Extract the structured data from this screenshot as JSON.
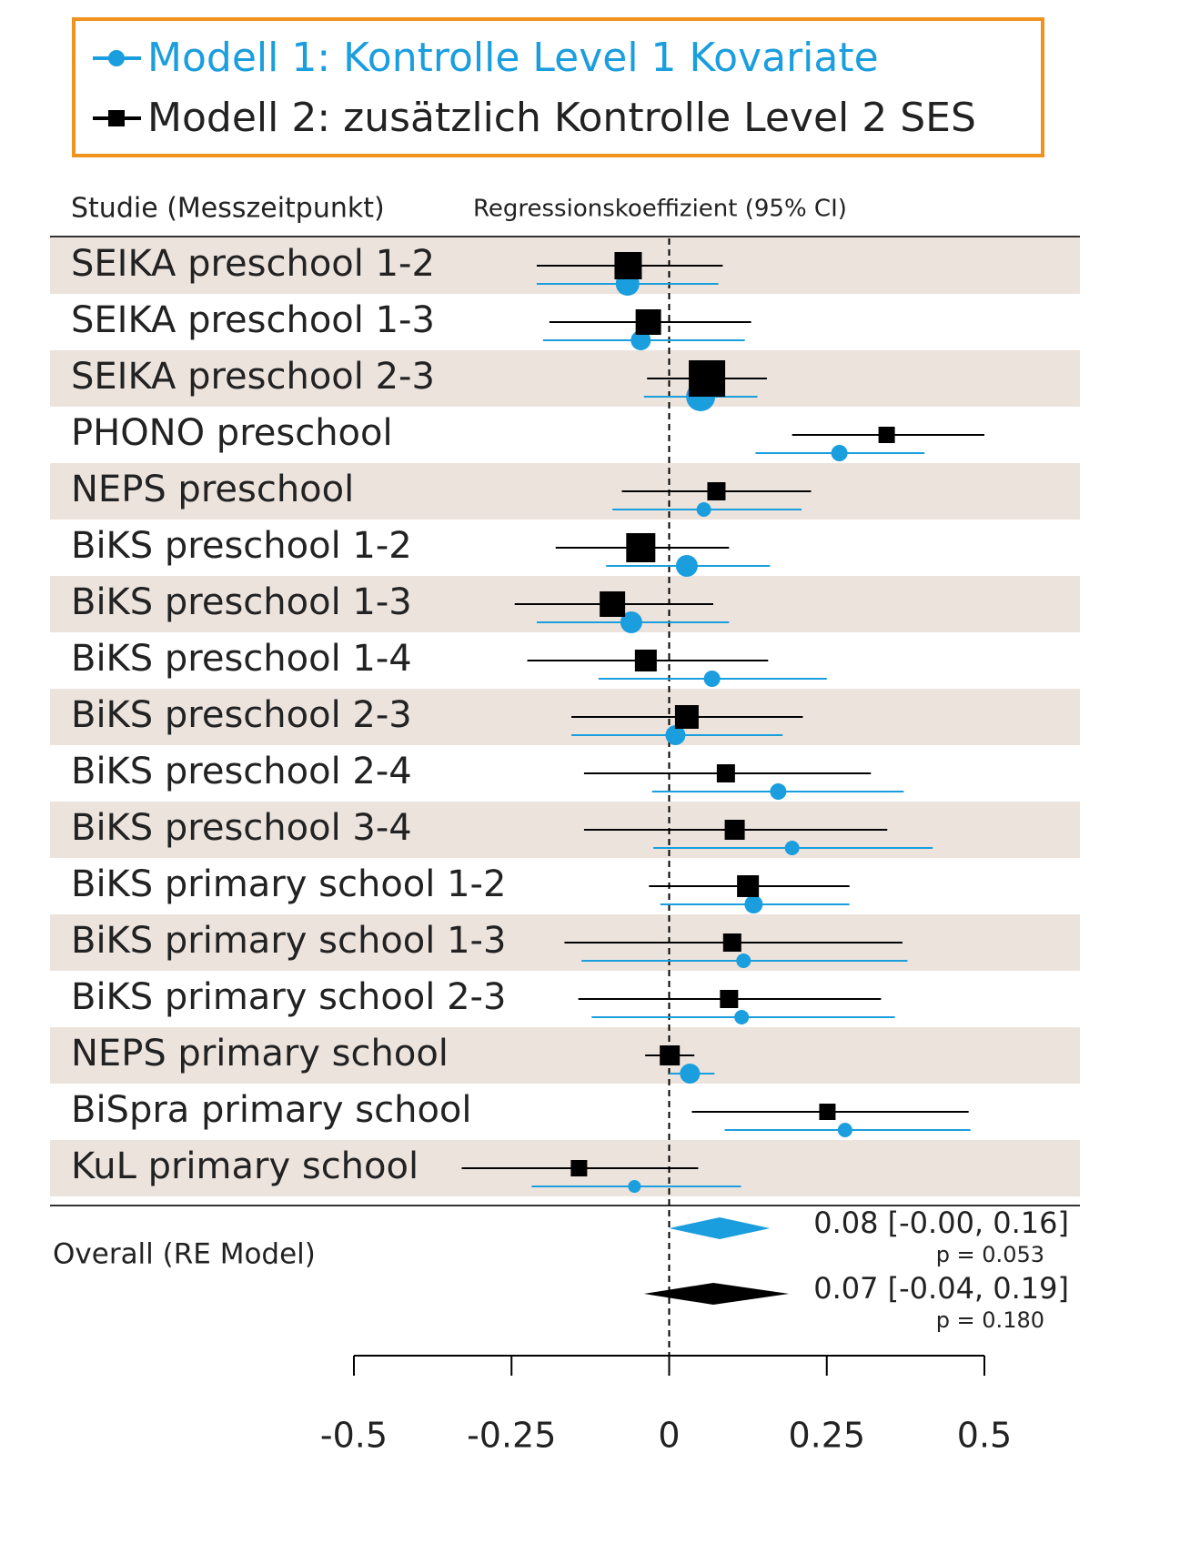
{
  "chart_data": {
    "type": "forest",
    "column_headers": [
      "Studie (Messzeitpunkt)",
      "Regressionskoeffizient (95% CI)"
    ],
    "categories": [
      "SEIKA preschool 1-2",
      "SEIKA preschool 1-3",
      "SEIKA preschool 2-3",
      "PHONO preschool",
      "NEPS preschool",
      "BiKS preschool 1-2",
      "BiKS preschool 1-3",
      "BiKS preschool 1-4",
      "BiKS preschool 2-3",
      "BiKS preschool 2-4",
      "BiKS preschool 3-4",
      "BiKS primary school 1-2",
      "BiKS primary school 1-3",
      "BiKS primary school 2-3",
      "NEPS primary school",
      "BiSpra primary school",
      "KuL primary school"
    ],
    "series": [
      {
        "name": "Modell 1: Kontrolle Level 1 Kovariate",
        "color": "#1a9ede",
        "marker": "circle",
        "values": [
          -0.066,
          -0.045,
          0.05,
          0.27,
          0.055,
          0.028,
          -0.06,
          0.068,
          0.01,
          0.173,
          0.195,
          0.134,
          0.118,
          0.115,
          0.033,
          0.279,
          -0.055
        ],
        "lower": [
          -0.21,
          -0.2,
          -0.04,
          0.137,
          -0.09,
          -0.1,
          -0.21,
          -0.112,
          -0.155,
          -0.027,
          -0.025,
          -0.014,
          -0.139,
          -0.123,
          0,
          0.088,
          -0.218
        ],
        "upper": [
          0.078,
          0.12,
          0.14,
          0.405,
          0.21,
          0.16,
          0.095,
          0.25,
          0.18,
          0.372,
          0.418,
          0.286,
          0.378,
          0.358,
          0.072,
          0.478,
          0.114
        ],
        "weights": [
          26,
          22,
          32,
          18,
          16,
          24,
          24,
          18,
          22,
          18,
          16,
          20,
          16,
          16,
          22,
          16,
          14
        ],
        "overall": {
          "estimate": 0.08,
          "lower": 0,
          "upper": 0.16,
          "label": "0.08 [-0.00, 0.16]",
          "p_label": "p = 0.053"
        }
      },
      {
        "name": "Modell 2: zusätzlich Kontrolle Level 2 SES",
        "color": "#000000",
        "marker": "square",
        "values": [
          -0.065,
          -0.033,
          0.06,
          0.345,
          0.075,
          -0.045,
          -0.09,
          -0.037,
          0.028,
          0.09,
          0.104,
          0.125,
          0.1,
          0.095,
          0.001,
          0.251,
          -0.143
        ],
        "lower": [
          -0.21,
          -0.19,
          -0.035,
          0.195,
          -0.075,
          -0.18,
          -0.245,
          -0.225,
          -0.155,
          -0.135,
          -0.135,
          -0.032,
          -0.166,
          -0.144,
          -0.038,
          0.036,
          -0.329
        ],
        "upper": [
          0.085,
          0.13,
          0.155,
          0.5,
          0.225,
          0.095,
          0.07,
          0.157,
          0.212,
          0.32,
          0.346,
          0.286,
          0.37,
          0.336,
          0.04,
          0.475,
          0.046
        ],
        "weights": [
          30,
          28,
          40,
          18,
          20,
          32,
          28,
          24,
          26,
          20,
          22,
          24,
          20,
          20,
          22,
          18,
          18
        ],
        "overall": {
          "estimate": 0.07,
          "lower": -0.04,
          "upper": 0.19,
          "label": "0.07 [-0.04, 0.19]",
          "p_label": "p = 0.180"
        }
      }
    ],
    "overall_label": "Overall (RE Model)",
    "xlim": [
      -0.5,
      0.5
    ],
    "xticks": [
      -0.5,
      -0.25,
      0,
      0.25,
      0.5
    ],
    "reference_line": 0
  }
}
